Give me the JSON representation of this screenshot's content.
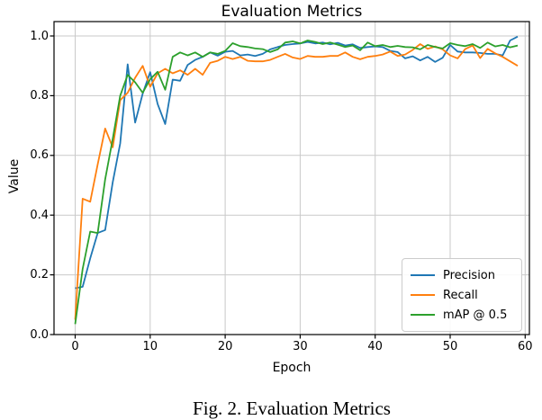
{
  "figure": {
    "title": "Evaluation Metrics",
    "xlabel": "Epoch",
    "ylabel": "Value",
    "caption": "Fig. 2. Evaluation Metrics"
  },
  "colors": {
    "precision": "#1f77b4",
    "recall": "#ff7f0e",
    "map50": "#2ca02c",
    "grid": "#c9c9c9",
    "spine": "#000000",
    "legend_border": "#cccccc"
  },
  "legend": {
    "position": "lower right",
    "entries": [
      "Precision",
      "Recall",
      "mAP @ 0.5"
    ]
  },
  "chart_data": {
    "type": "line",
    "title": "Evaluation Metrics",
    "xlabel": "Epoch",
    "ylabel": "Value",
    "grid": true,
    "legend_position": "lower right",
    "x_range": [
      0,
      59
    ],
    "xlim": [
      -2.8,
      60.5
    ],
    "ylim": [
      0.0,
      1.048
    ],
    "x_ticks": [
      0,
      10,
      20,
      30,
      40,
      50,
      60
    ],
    "x_tick_labels": [
      "0",
      "10",
      "20",
      "30",
      "40",
      "50",
      "60"
    ],
    "y_ticks": [
      0.0,
      0.2,
      0.4,
      0.6,
      0.8,
      1.0
    ],
    "y_tick_labels": [
      "0.0",
      "0.2",
      "0.4",
      "0.6",
      "0.8",
      "1.0"
    ],
    "series": [
      {
        "name": "Precision",
        "color": "#1f77b4",
        "values": [
          0.155,
          0.16,
          0.255,
          0.34,
          0.35,
          0.51,
          0.64,
          0.905,
          0.71,
          0.807,
          0.879,
          0.772,
          0.705,
          0.854,
          0.85,
          0.903,
          0.92,
          0.93,
          0.945,
          0.934,
          0.947,
          0.95,
          0.935,
          0.938,
          0.933,
          0.94,
          0.955,
          0.963,
          0.97,
          0.973,
          0.975,
          0.98,
          0.975,
          0.978,
          0.972,
          0.977,
          0.968,
          0.972,
          0.96,
          0.963,
          0.965,
          0.963,
          0.95,
          0.946,
          0.925,
          0.932,
          0.918,
          0.93,
          0.913,
          0.927,
          0.97,
          0.948,
          0.945,
          0.945,
          0.943,
          0.94,
          0.94,
          0.935,
          0.985,
          0.998
        ]
      },
      {
        "name": "Recall",
        "color": "#ff7f0e",
        "values": [
          0.05,
          0.455,
          0.445,
          0.57,
          0.69,
          0.627,
          0.785,
          0.81,
          0.86,
          0.9,
          0.83,
          0.875,
          0.89,
          0.875,
          0.885,
          0.87,
          0.89,
          0.87,
          0.91,
          0.917,
          0.93,
          0.923,
          0.93,
          0.917,
          0.915,
          0.915,
          0.92,
          0.93,
          0.94,
          0.928,
          0.923,
          0.933,
          0.93,
          0.93,
          0.933,
          0.933,
          0.945,
          0.93,
          0.922,
          0.93,
          0.933,
          0.938,
          0.948,
          0.933,
          0.938,
          0.953,
          0.973,
          0.957,
          0.965,
          0.955,
          0.935,
          0.925,
          0.956,
          0.968,
          0.926,
          0.957,
          0.942,
          0.93,
          0.915,
          0.9
        ]
      },
      {
        "name": "mAP @ 0.5",
        "color": "#2ca02c",
        "values": [
          0.035,
          0.22,
          0.345,
          0.34,
          0.52,
          0.655,
          0.8,
          0.87,
          0.845,
          0.81,
          0.855,
          0.88,
          0.82,
          0.93,
          0.945,
          0.935,
          0.945,
          0.93,
          0.945,
          0.94,
          0.95,
          0.976,
          0.966,
          0.963,
          0.958,
          0.956,
          0.946,
          0.955,
          0.978,
          0.982,
          0.975,
          0.985,
          0.98,
          0.973,
          0.978,
          0.971,
          0.963,
          0.968,
          0.952,
          0.978,
          0.966,
          0.97,
          0.963,
          0.967,
          0.963,
          0.962,
          0.955,
          0.97,
          0.963,
          0.958,
          0.976,
          0.97,
          0.966,
          0.973,
          0.96,
          0.978,
          0.965,
          0.97,
          0.962,
          0.968
        ]
      }
    ]
  }
}
